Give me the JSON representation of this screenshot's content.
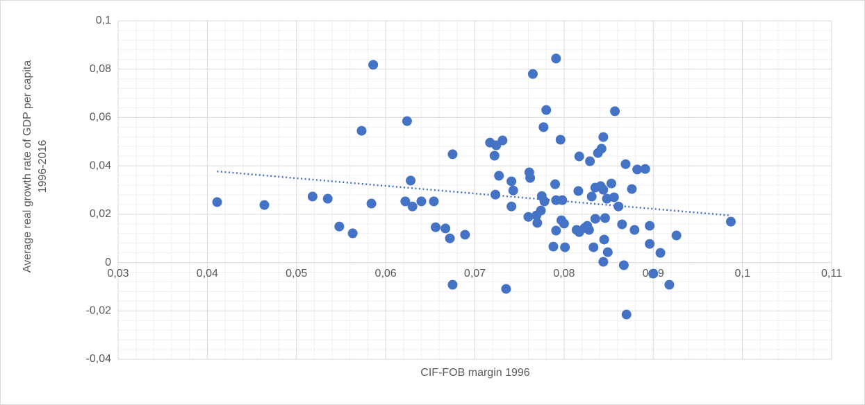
{
  "chart_data": {
    "type": "scatter",
    "x_label": "CIF-FOB margin 1996",
    "y_label": "Average real growth rate of GDP per capita 1996-2016",
    "color": "#4472c4",
    "grid": true,
    "minor_grid": true,
    "trendline": "linear",
    "xlim": [
      0.03,
      0.11
    ],
    "ylim": [
      -0.04,
      0.1
    ],
    "xticks": [
      {
        "value": 0.03,
        "label": "0,03"
      },
      {
        "value": 0.04,
        "label": "0,04"
      },
      {
        "value": 0.05,
        "label": "0,05"
      },
      {
        "value": 0.06,
        "label": "0,06"
      },
      {
        "value": 0.07,
        "label": "0,07"
      },
      {
        "value": 0.08,
        "label": "0,08"
      },
      {
        "value": 0.09,
        "label": "0,09"
      },
      {
        "value": 0.1,
        "label": "0,1"
      },
      {
        "value": 0.11,
        "label": "0,11"
      }
    ],
    "yticks": [
      {
        "value": -0.04,
        "label": "-0,04"
      },
      {
        "value": -0.02,
        "label": "-0,02"
      },
      0,
      {
        "value": 0.02,
        "label": "0,02"
      },
      {
        "value": 0.04,
        "label": "0,04"
      },
      {
        "value": 0.06,
        "label": "0,06"
      },
      {
        "value": 0.08,
        "label": "0,08"
      },
      {
        "value": 0.1,
        "label": "0,1"
      }
    ],
    "x": [
      0.0411,
      0.0464,
      0.0518,
      0.0535,
      0.0548,
      0.0563,
      0.0573,
      0.0584,
      0.0586,
      0.0624,
      0.0622,
      0.0628,
      0.063,
      0.064,
      0.0654,
      0.0656,
      0.0667,
      0.0672,
      0.0675,
      0.0675,
      0.0689,
      0.0717,
      0.0722,
      0.0724,
      0.0731,
      0.0727,
      0.0723,
      0.0735,
      0.0741,
      0.0743,
      0.0741,
      0.076,
      0.0761,
      0.0762,
      0.0765,
      0.0769,
      0.077,
      0.0774,
      0.0775,
      0.0777,
      0.0778,
      0.078,
      0.0788,
      0.079,
      0.0791,
      0.0791,
      0.0791,
      0.0796,
      0.0797,
      0.0798,
      0.08,
      0.0801,
      0.0814,
      0.0816,
      0.0817,
      0.0817,
      0.0823,
      0.0826,
      0.0828,
      0.0829,
      0.0831,
      0.0833,
      0.0835,
      0.0835,
      0.0838,
      0.0842,
      0.0841,
      0.0844,
      0.0844,
      0.0844,
      0.0846,
      0.0845,
      0.0848,
      0.0849,
      0.0853,
      0.0856,
      0.0857,
      0.0861,
      0.0865,
      0.0867,
      0.0869,
      0.087,
      0.0876,
      0.0879,
      0.0882,
      0.0891,
      0.0896,
      0.0896,
      0.09,
      0.0908,
      0.0918,
      0.0926,
      0.0987
    ],
    "values": [
      0.025,
      0.0238,
      0.0273,
      0.0264,
      0.0149,
      0.0121,
      0.0545,
      0.0244,
      0.0818,
      0.0585,
      0.0253,
      0.0339,
      0.0232,
      0.0253,
      0.0253,
      0.0146,
      0.0141,
      0.01,
      0.0448,
      -0.0092,
      0.0115,
      0.0496,
      0.0442,
      0.0485,
      0.0505,
      0.0359,
      0.0281,
      -0.0109,
      0.0336,
      0.0298,
      0.0232,
      0.0189,
      0.0373,
      0.035,
      0.078,
      0.0195,
      0.0164,
      0.0215,
      0.0275,
      0.056,
      0.0253,
      0.0631,
      0.0066,
      0.0324,
      0.0844,
      0.0258,
      0.0132,
      0.0508,
      0.0175,
      0.0258,
      0.0161,
      0.0063,
      0.0135,
      0.0296,
      0.0126,
      0.0439,
      0.0143,
      0.0152,
      0.0135,
      0.0419,
      0.0273,
      0.0063,
      0.0181,
      0.031,
      0.0453,
      0.0471,
      0.0316,
      0.0301,
      0.0003,
      0.0519,
      0.0184,
      0.0095,
      0.0264,
      0.0043,
      0.0327,
      0.027,
      0.0626,
      0.0232,
      0.0158,
      -0.0011,
      0.0407,
      -0.0215,
      0.0304,
      0.0135,
      0.0385,
      0.0387,
      0.0152,
      0.0077,
      -0.0046,
      0.004,
      -0.0092,
      0.0112,
      0.0169
    ]
  }
}
